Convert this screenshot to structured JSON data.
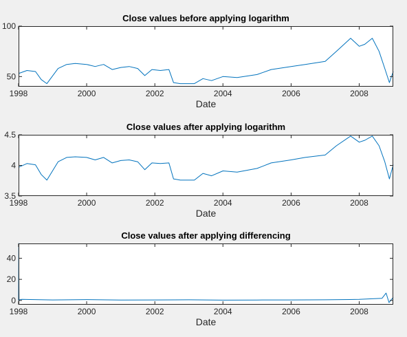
{
  "chart_data": [
    {
      "type": "line",
      "title": "Close values before applying logarithm",
      "xlabel": "Date",
      "ylabel": "",
      "xlim": [
        "1998-01-01",
        "2008-12-31"
      ],
      "ylim": [
        40,
        100
      ],
      "xticks": [
        "1998",
        "2000",
        "2002",
        "2004",
        "2006",
        "2008"
      ],
      "yticks": [
        "50",
        "100"
      ],
      "grid": false,
      "color": "#0072bd",
      "series": [
        {
          "x": [
            "1998-01-01",
            "1998-04-01",
            "1998-07-01",
            "1998-09-01",
            "1998-11-01",
            "1999-03-01",
            "1999-06-01",
            "1999-09-01",
            "2000-01-01",
            "2000-04-01",
            "2000-07-01",
            "2000-10-01",
            "2001-01-01",
            "2001-04-01",
            "2001-07-01",
            "2001-09-15",
            "2001-12-01",
            "2002-03-01",
            "2002-06-01",
            "2002-07-20",
            "2002-10-01",
            "2003-03-01",
            "2003-06-01",
            "2003-09-01",
            "2004-01-01",
            "2004-06-01",
            "2005-01-01",
            "2005-06-01",
            "2006-01-01",
            "2006-06-01",
            "2007-01-01",
            "2007-05-01",
            "2007-10-01",
            "2008-01-01",
            "2008-03-01",
            "2008-05-20",
            "2008-08-01",
            "2008-10-01",
            "2008-11-20",
            "2008-12-31"
          ],
          "y": [
            53,
            56,
            55,
            47,
            43,
            58,
            62,
            63,
            62,
            60,
            62,
            57,
            59,
            60,
            58,
            51,
            57,
            56,
            57,
            44,
            43,
            43,
            48,
            46,
            50,
            49,
            52,
            57,
            60,
            62,
            65,
            75,
            88,
            80,
            82,
            88,
            75,
            58,
            44,
            55
          ]
        }
      ]
    },
    {
      "type": "line",
      "title": "Close values after applying logarithm",
      "xlabel": "Date",
      "ylabel": "",
      "xlim": [
        "1998-01-01",
        "2008-12-31"
      ],
      "ylim": [
        3.5,
        4.5
      ],
      "xticks": [
        "1998",
        "2000",
        "2002",
        "2004",
        "2006",
        "2008"
      ],
      "yticks": [
        "3.5",
        "4",
        "4.5"
      ],
      "grid": false,
      "color": "#0072bd",
      "series": [
        {
          "x": [
            "1998-01-01",
            "1998-04-01",
            "1998-07-01",
            "1998-09-01",
            "1998-11-01",
            "1999-03-01",
            "1999-06-01",
            "1999-09-01",
            "2000-01-01",
            "2000-04-01",
            "2000-07-01",
            "2000-10-01",
            "2001-01-01",
            "2001-04-01",
            "2001-07-01",
            "2001-09-15",
            "2001-12-01",
            "2002-03-01",
            "2002-06-01",
            "2002-07-20",
            "2002-10-01",
            "2003-03-01",
            "2003-06-01",
            "2003-09-01",
            "2004-01-01",
            "2004-06-01",
            "2005-01-01",
            "2005-06-01",
            "2006-01-01",
            "2006-06-01",
            "2007-01-01",
            "2007-05-01",
            "2007-10-01",
            "2008-01-01",
            "2008-03-01",
            "2008-05-20",
            "2008-08-01",
            "2008-10-01",
            "2008-11-20",
            "2008-12-31"
          ],
          "y": [
            3.97,
            4.03,
            4.01,
            3.85,
            3.76,
            4.06,
            4.13,
            4.14,
            4.13,
            4.09,
            4.13,
            4.04,
            4.08,
            4.09,
            4.06,
            3.93,
            4.04,
            4.03,
            4.04,
            3.78,
            3.76,
            3.76,
            3.87,
            3.83,
            3.91,
            3.89,
            3.95,
            4.04,
            4.09,
            4.13,
            4.17,
            4.32,
            4.48,
            4.38,
            4.41,
            4.48,
            4.32,
            4.06,
            3.78,
            4.01
          ]
        }
      ]
    },
    {
      "type": "line",
      "title": "Close values after applying differencing",
      "xlabel": "Date",
      "ylabel": "",
      "xlim": [
        "1998-01-01",
        "2008-12-31"
      ],
      "ylim": [
        -4,
        54
      ],
      "xticks": [
        "1998",
        "2000",
        "2002",
        "2004",
        "2006",
        "2008"
      ],
      "yticks": [
        "0",
        "20",
        "40"
      ],
      "grid": false,
      "color": "#0072bd",
      "series": [
        {
          "x": [
            "1998-01-01",
            "1998-01-03",
            "1998-01-06",
            "1998-02-01",
            "1999-01-01",
            "2000-01-01",
            "2001-01-01",
            "2002-01-01",
            "2003-01-01",
            "2004-01-01",
            "2005-01-01",
            "2006-01-01",
            "2007-01-01",
            "2008-01-01",
            "2008-09-01",
            "2008-10-15",
            "2008-11-15",
            "2008-12-31"
          ],
          "y": [
            0,
            54,
            0.5,
            1,
            0.5,
            0.8,
            0.4,
            0.5,
            0.6,
            0.3,
            0.4,
            0.5,
            0.6,
            1,
            2,
            7,
            -2,
            3
          ]
        }
      ]
    }
  ]
}
